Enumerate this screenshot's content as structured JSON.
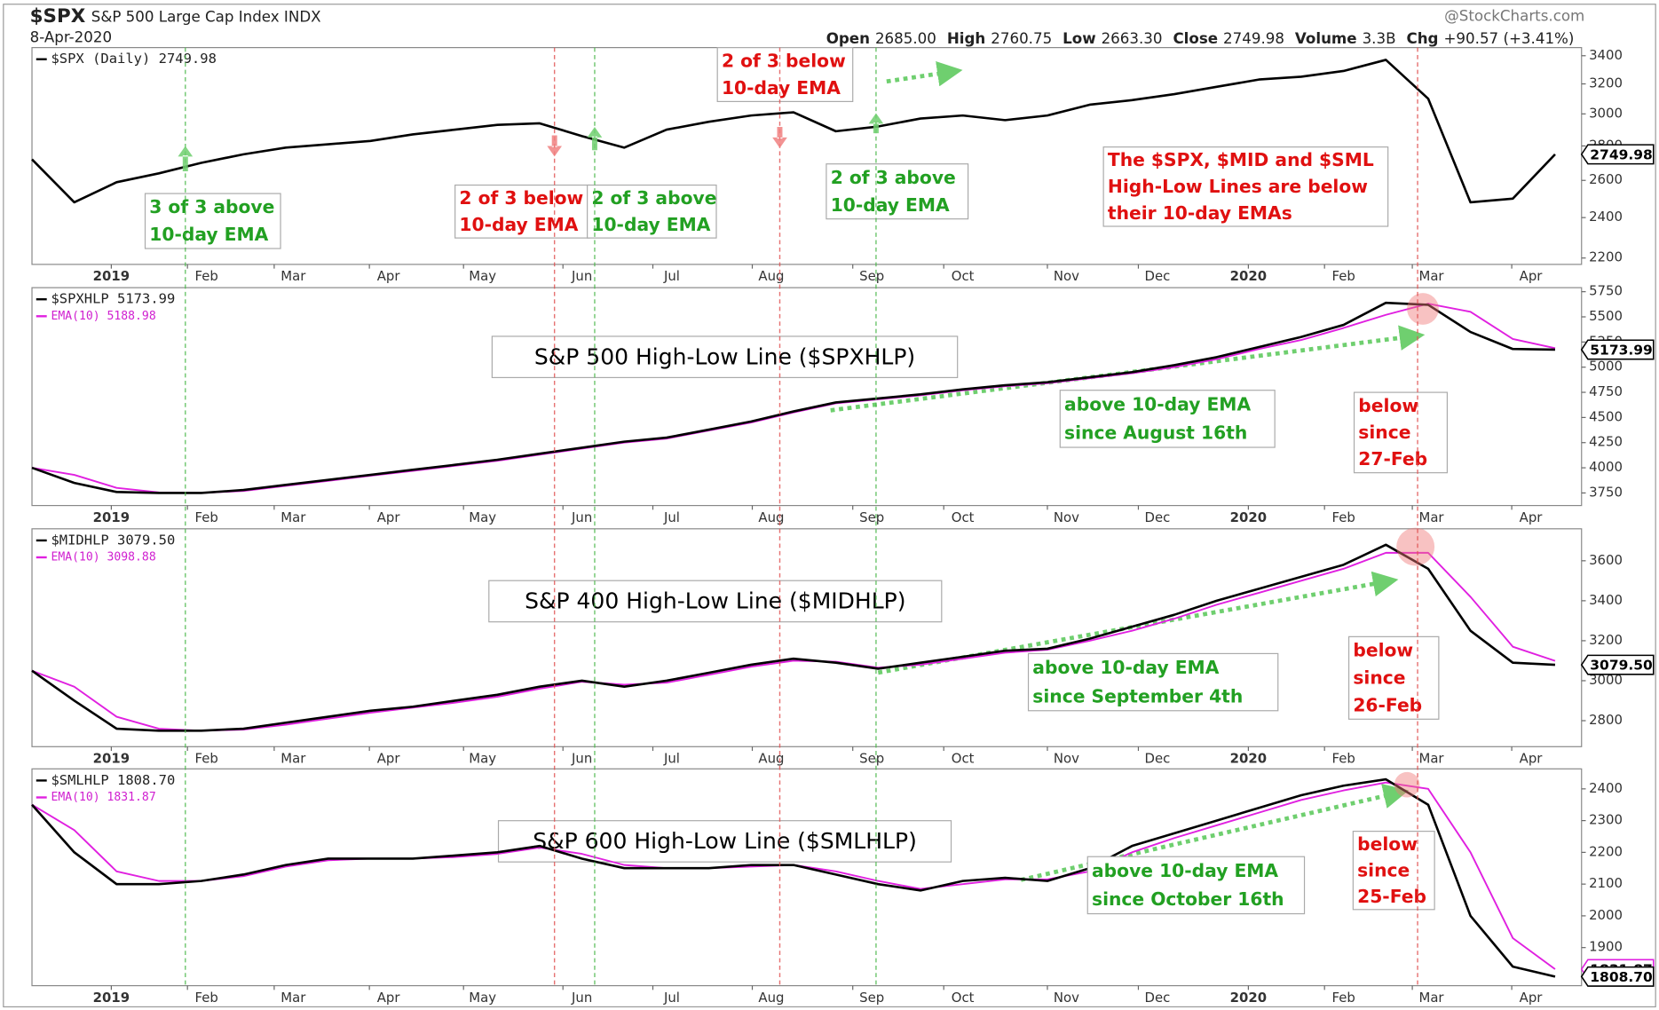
{
  "header": {
    "symbol": "$SPX",
    "name": "S&P 500 Large Cap Index INDX",
    "date": "8-Apr-2020",
    "source": "@StockCharts.com",
    "quote": [
      {
        "label": "Open",
        "value": "2685.00"
      },
      {
        "label": "High",
        "value": "2760.75"
      },
      {
        "label": "Low",
        "value": "2663.30"
      },
      {
        "label": "Close",
        "value": "2749.98"
      },
      {
        "label": "Volume",
        "value": "3.3B"
      },
      {
        "label": "Chg",
        "value": "+90.57 (+3.41%)"
      }
    ]
  },
  "chart_data": [
    {
      "type": "line",
      "log": true,
      "ylim": [
        2170,
        3460
      ],
      "yticks": [
        2200,
        2400,
        2600,
        2800,
        3000,
        3200,
        3400
      ],
      "x_labels": [
        "2019",
        "Feb",
        "Mar",
        "Apr",
        "May",
        "Jun",
        "Jul",
        "Aug",
        "Sep",
        "Oct",
        "Nov",
        "Dec",
        "2020",
        "Feb",
        "Mar",
        "Apr"
      ],
      "badges": [
        "2749.98"
      ],
      "series": [
        {
          "name": "$SPX (Daily) 2749.98",
          "color": "#000000",
          "values": [
            2720,
            2480,
            2590,
            2640,
            2700,
            2750,
            2790,
            2810,
            2830,
            2870,
            2900,
            2930,
            2940,
            2860,
            2790,
            2900,
            2950,
            2990,
            3010,
            2890,
            2920,
            2970,
            2990,
            2960,
            2990,
            3060,
            3090,
            3130,
            3180,
            3230,
            3250,
            3290,
            3370,
            3100,
            2480,
            2500,
            2749.98
          ]
        }
      ],
      "annotations": [
        {
          "text": [
            "3 of 3 above",
            "10-day EMA"
          ],
          "color": "#22a022"
        },
        {
          "text": [
            "2 of 3 below",
            "10-day EMA"
          ],
          "color": "#e01010"
        },
        {
          "text": [
            "2 of 3 above",
            "10-day EMA"
          ],
          "color": "#22a022"
        },
        {
          "text": [
            "2 of 3 below",
            "10-day EMA"
          ],
          "color": "#e01010"
        },
        {
          "text": [
            "2 of 3 above",
            "10-day EMA"
          ],
          "color": "#22a022"
        },
        {
          "text": [
            "The $SPX, $MID and $SML",
            "High-Low Lines are below",
            "their 10-day EMAs"
          ],
          "color": "#e01010"
        }
      ]
    },
    {
      "type": "line",
      "ylim": [
        3625,
        5790
      ],
      "yticks": [
        3750,
        4000,
        4250,
        4500,
        4750,
        5000,
        5250,
        5500,
        5750
      ],
      "x_labels": [
        "2019",
        "Feb",
        "Mar",
        "Apr",
        "May",
        "Jun",
        "Jul",
        "Aug",
        "Sep",
        "Oct",
        "Nov",
        "Dec",
        "2020",
        "Feb",
        "Mar",
        "Apr"
      ],
      "badges": [
        "5173.99"
      ],
      "panel_title": "S&P 500 High-Low Line ($SPXHLP)",
      "series": [
        {
          "name": "$SPXHLP 5173.99",
          "color": "#000000",
          "values": [
            4000,
            3850,
            3760,
            3750,
            3750,
            3780,
            3830,
            3880,
            3930,
            3980,
            4030,
            4080,
            4140,
            4200,
            4260,
            4300,
            4380,
            4460,
            4560,
            4650,
            4690,
            4730,
            4780,
            4820,
            4850,
            4900,
            4950,
            5020,
            5100,
            5200,
            5300,
            5420,
            5640,
            5620,
            5350,
            5180,
            5173.99
          ]
        },
        {
          "name": "EMA(10) 5188.98",
          "color": "#e020e0",
          "values": [
            4000,
            3930,
            3800,
            3755,
            3750,
            3770,
            3820,
            3870,
            3920,
            3970,
            4020,
            4070,
            4130,
            4190,
            4250,
            4290,
            4370,
            4450,
            4550,
            4640,
            4680,
            4720,
            4770,
            4810,
            4840,
            4890,
            4940,
            5000,
            5080,
            5180,
            5270,
            5390,
            5520,
            5630,
            5550,
            5280,
            5188.98
          ]
        }
      ],
      "annotations": [
        {
          "text": [
            "above 10-day EMA",
            "since August 16th"
          ],
          "color": "#22a022"
        },
        {
          "text": [
            "below",
            "since",
            "27-Feb"
          ],
          "color": "#e01010"
        }
      ]
    },
    {
      "type": "line",
      "ylim": [
        2670,
        3760
      ],
      "yticks": [
        2800,
        3000,
        3200,
        3400,
        3600
      ],
      "x_labels": [
        "2019",
        "Feb",
        "Mar",
        "Apr",
        "May",
        "Jun",
        "Jul",
        "Aug",
        "Sep",
        "Oct",
        "Nov",
        "Dec",
        "2020",
        "Feb",
        "Mar",
        "Apr"
      ],
      "badges": [
        "3079.50"
      ],
      "panel_title": "S&P 400 High-Low Line ($MIDHLP)",
      "series": [
        {
          "name": "$MIDHLP 3079.50",
          "color": "#000000",
          "values": [
            3050,
            2900,
            2760,
            2750,
            2750,
            2760,
            2790,
            2820,
            2850,
            2870,
            2900,
            2930,
            2970,
            3000,
            2970,
            3000,
            3040,
            3080,
            3110,
            3090,
            3060,
            3090,
            3120,
            3150,
            3160,
            3210,
            3270,
            3330,
            3400,
            3460,
            3520,
            3580,
            3680,
            3560,
            3250,
            3090,
            3079.5
          ]
        },
        {
          "name": "EMA(10) 3098.88",
          "color": "#e020e0",
          "values": [
            3050,
            2970,
            2820,
            2760,
            2750,
            2755,
            2780,
            2810,
            2840,
            2865,
            2890,
            2920,
            2960,
            2995,
            2980,
            2990,
            3030,
            3070,
            3100,
            3095,
            3065,
            3080,
            3110,
            3140,
            3155,
            3200,
            3250,
            3310,
            3380,
            3440,
            3500,
            3560,
            3640,
            3640,
            3420,
            3170,
            3098.88
          ]
        }
      ],
      "annotations": [
        {
          "text": [
            "above 10-day EMA",
            "since September 4th"
          ],
          "color": "#22a022"
        },
        {
          "text": [
            "below",
            "since",
            "26-Feb"
          ],
          "color": "#e01010"
        }
      ]
    },
    {
      "type": "line",
      "ylim": [
        1780,
        2463
      ],
      "yticks": [
        1900,
        2000,
        2100,
        2200,
        2300,
        2400
      ],
      "x_labels": [
        "2019",
        "Feb",
        "Mar",
        "Apr",
        "May",
        "Jun",
        "Jul",
        "Aug",
        "Sep",
        "Oct",
        "Nov",
        "Dec",
        "2020",
        "Feb",
        "Mar",
        "Apr"
      ],
      "badges": [
        "1808.70",
        "1831.87"
      ],
      "panel_title": "S&P 600 High-Low Line ($SMLHLP)",
      "series": [
        {
          "name": "$SMLHLP 1808.70",
          "color": "#000000",
          "values": [
            2350,
            2200,
            2100,
            2100,
            2110,
            2130,
            2160,
            2180,
            2180,
            2180,
            2190,
            2200,
            2220,
            2180,
            2150,
            2150,
            2150,
            2160,
            2160,
            2130,
            2100,
            2080,
            2110,
            2120,
            2110,
            2150,
            2220,
            2260,
            2300,
            2340,
            2380,
            2410,
            2430,
            2350,
            2000,
            1840,
            1808.7
          ]
        },
        {
          "name": "EMA(10) 1831.87",
          "color": "#e020e0",
          "values": [
            2350,
            2270,
            2140,
            2110,
            2110,
            2125,
            2155,
            2175,
            2180,
            2180,
            2185,
            2195,
            2215,
            2195,
            2160,
            2150,
            2150,
            2155,
            2160,
            2140,
            2110,
            2085,
            2100,
            2115,
            2115,
            2140,
            2200,
            2245,
            2285,
            2325,
            2365,
            2395,
            2420,
            2400,
            2200,
            1930,
            1831.87
          ]
        }
      ],
      "annotations": [
        {
          "text": [
            "above 10-day EMA",
            "since October 16th"
          ],
          "color": "#22a022"
        },
        {
          "text": [
            "below",
            "since",
            "25-Feb"
          ],
          "color": "#e01010"
        }
      ]
    }
  ]
}
